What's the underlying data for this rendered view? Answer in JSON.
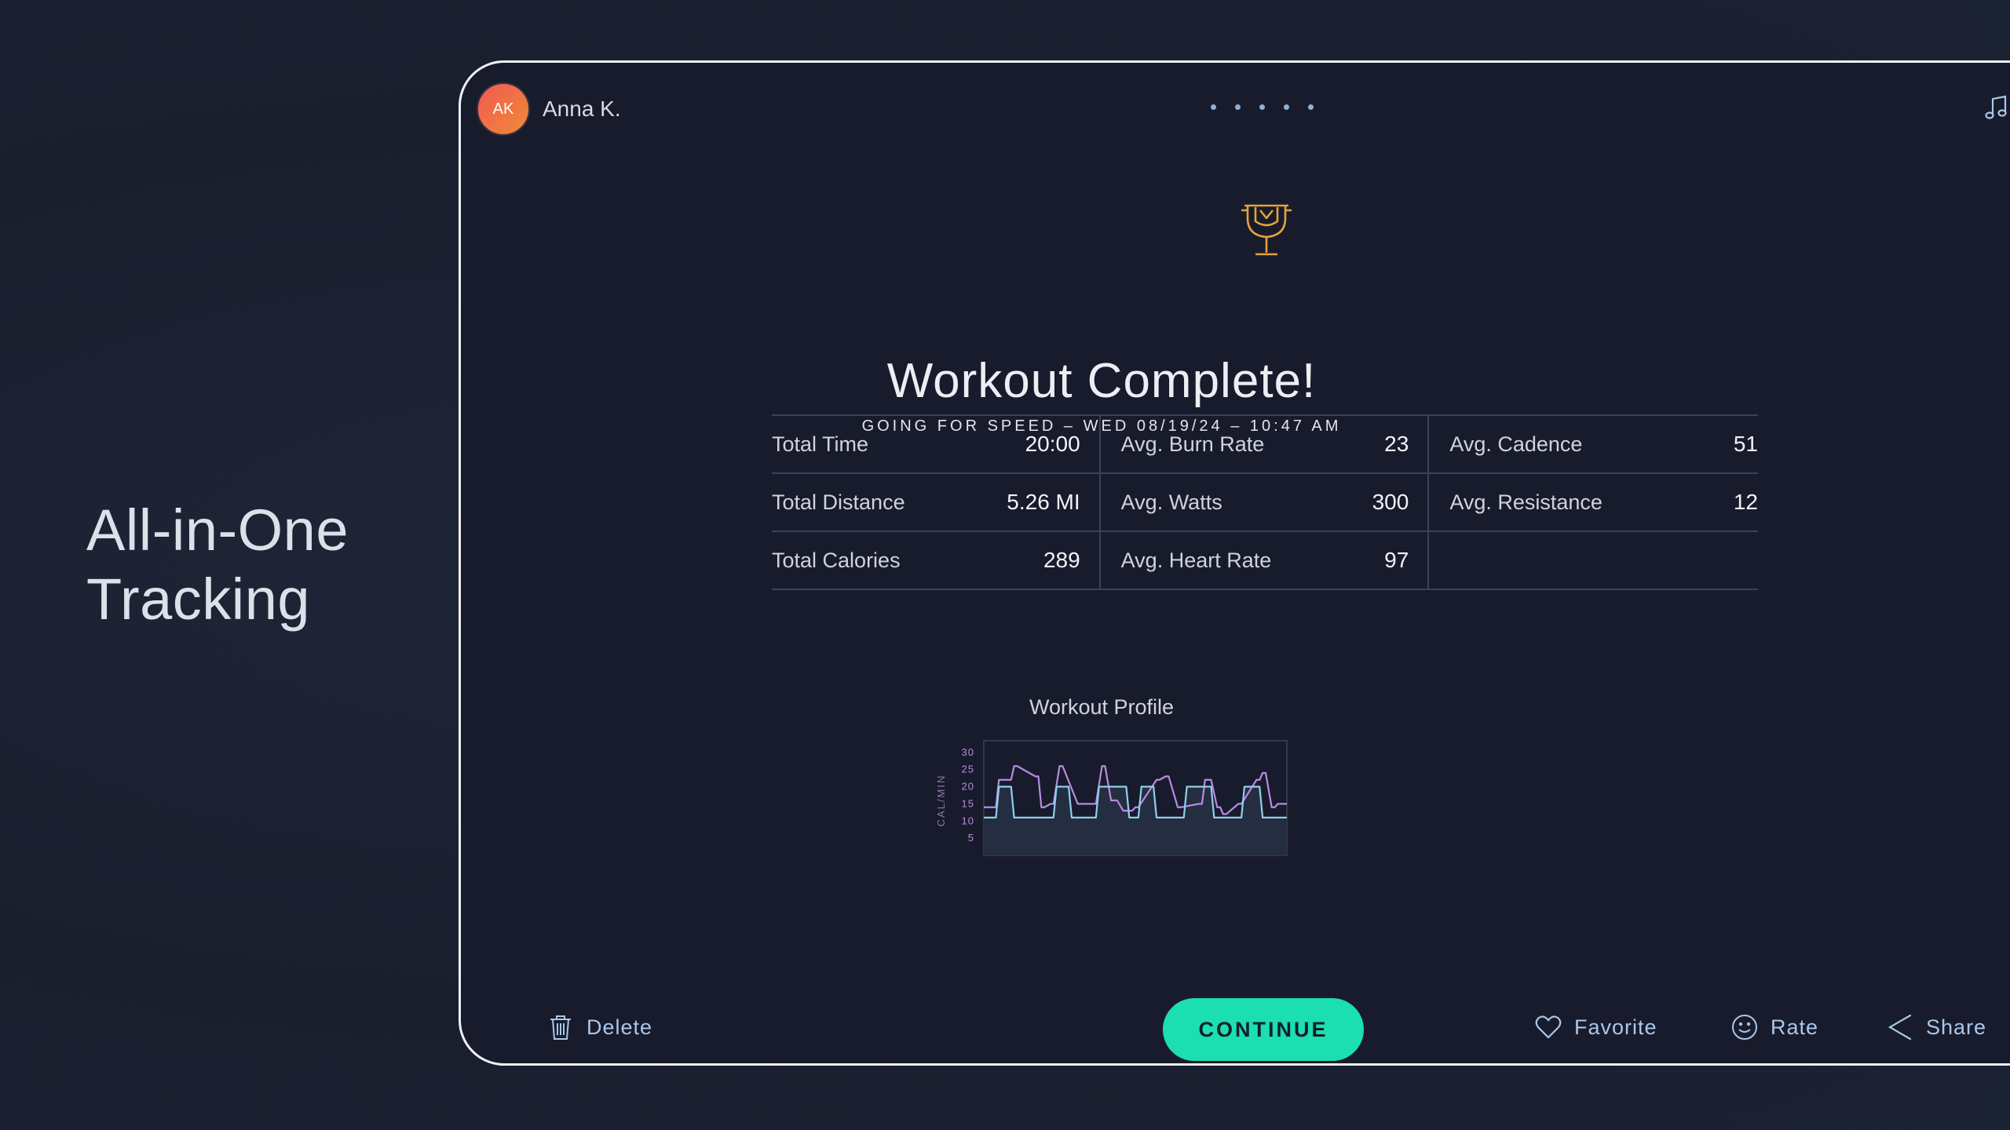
{
  "tagline": {
    "line1": "All-in-One",
    "line2": "Tracking"
  },
  "user": {
    "initials": "AK",
    "name": "Anna K."
  },
  "header": {
    "page_dots": 5,
    "icons": [
      "music-note-icon",
      "speaker-icon"
    ]
  },
  "summary": {
    "title": "Workout Complete!",
    "subtitle": "GOING FOR SPEED – WED 08/19/24 – 10:47 AM",
    "icon": "trophy-icon",
    "stats": [
      {
        "label": "Total Time",
        "value": "20:00"
      },
      {
        "label": "Avg. Burn Rate",
        "value": "23"
      },
      {
        "label": "Avg. Cadence",
        "value": "51"
      },
      {
        "label": "Total Distance",
        "value": "5.26 MI"
      },
      {
        "label": "Avg. Watts",
        "value": "300"
      },
      {
        "label": "Avg. Resistance",
        "value": "12"
      },
      {
        "label": "Total Calories",
        "value": "289"
      },
      {
        "label": "Avg. Heart Rate",
        "value": "97"
      },
      {
        "label": "",
        "value": ""
      }
    ]
  },
  "chart_data": {
    "type": "line",
    "title": "Workout Profile",
    "ylabel": "CAL/MIN",
    "y_ticks": [
      5,
      10,
      15,
      20,
      25,
      30
    ],
    "ylim": [
      0,
      32
    ],
    "series": [
      {
        "color": "#b98be0",
        "x": [
          0,
          4,
          5,
          9,
          10,
          11,
          17,
          18,
          19,
          20,
          22,
          23,
          25,
          26,
          31,
          32,
          36,
          37,
          39,
          40,
          42,
          44,
          46,
          49,
          50,
          51,
          57,
          58,
          60,
          61,
          64,
          65,
          71,
          72,
          73,
          75,
          77,
          78,
          79,
          80,
          84,
          85,
          90,
          91,
          92,
          93,
          95,
          96,
          97,
          100
        ],
        "values": [
          14,
          14,
          22,
          22,
          26,
          26,
          23,
          23,
          14,
          14,
          15,
          15,
          26,
          26,
          15,
          15,
          15,
          15,
          26,
          26,
          16,
          16,
          13,
          13,
          14,
          14,
          22,
          22,
          23,
          23,
          14,
          14,
          15,
          15,
          22,
          22,
          14,
          14,
          12,
          12,
          15,
          15,
          22,
          22,
          24,
          24,
          14,
          14,
          15,
          15
        ]
      },
      {
        "color": "#8ed0ec",
        "x": [
          0,
          4,
          5,
          9,
          10,
          19,
          20,
          23,
          24,
          28,
          29,
          32,
          33,
          37,
          38,
          47,
          48,
          51,
          52,
          56,
          57,
          61,
          62,
          66,
          67,
          75,
          76,
          80,
          81,
          85,
          86,
          91,
          92,
          96,
          97,
          100
        ],
        "values": [
          11,
          11,
          20,
          20,
          11,
          11,
          11,
          11,
          20,
          20,
          11,
          11,
          11,
          11,
          20,
          20,
          11,
          11,
          20,
          20,
          11,
          11,
          11,
          11,
          20,
          20,
          11,
          11,
          11,
          11,
          20,
          20,
          11,
          11,
          11,
          11
        ]
      }
    ]
  },
  "actions": {
    "delete": "Delete",
    "continue": "CONTINUE",
    "favorite": "Favorite",
    "rate": "Rate",
    "share": "Share"
  },
  "colors": {
    "accent": "#1bdfb0",
    "trophy": "#e6a23c",
    "link": "#a9c7e8",
    "avatar_start": "#f05a4f",
    "avatar_end": "#f08a3a"
  }
}
